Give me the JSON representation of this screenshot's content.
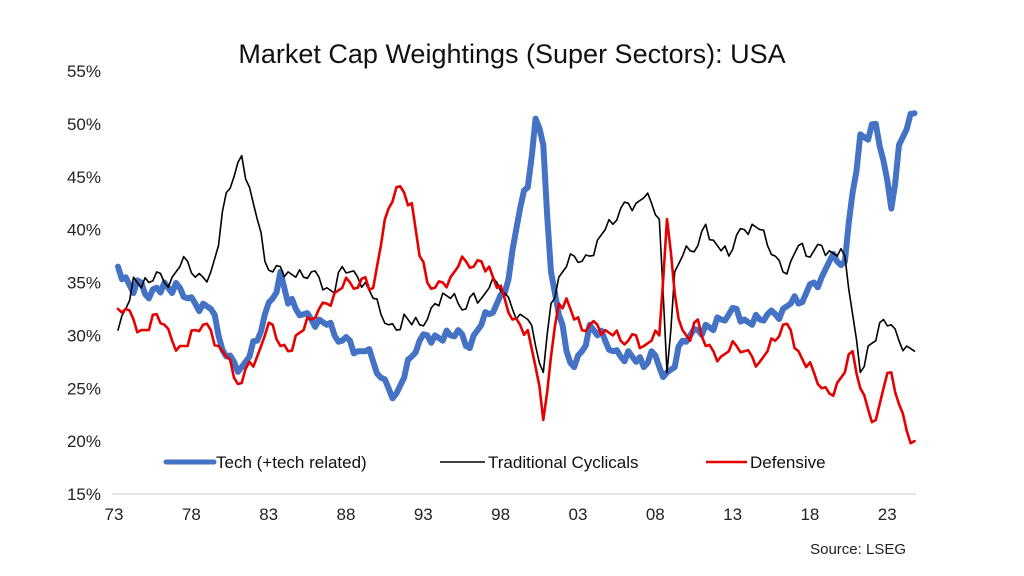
{
  "chart_data": {
    "type": "line",
    "title": "Market Cap Weightings (Super Sectors): USA",
    "xlabel": "",
    "ylabel": "",
    "source": "Source: LSEG",
    "xlim": [
      1973,
      2024.6
    ],
    "ylim": [
      15,
      55
    ],
    "y_ticks": [
      15,
      20,
      25,
      30,
      35,
      40,
      45,
      50,
      55
    ],
    "y_tick_labels": [
      "15%",
      "20%",
      "25%",
      "30%",
      "35%",
      "40%",
      "45%",
      "50%",
      "55%"
    ],
    "x_ticks": [
      1973,
      1978,
      1983,
      1988,
      1993,
      1998,
      2003,
      2008,
      2013,
      2018,
      2023
    ],
    "x_tick_labels": [
      "73",
      "78",
      "83",
      "88",
      "93",
      "98",
      "03",
      "08",
      "13",
      "18",
      "23"
    ],
    "grid": false,
    "legend_position": "bottom-inside",
    "x": [
      1973.0,
      1973.5,
      1974.0,
      1974.5,
      1975.0,
      1975.5,
      1976.0,
      1976.5,
      1977.0,
      1977.5,
      1978.0,
      1978.5,
      1979.0,
      1979.5,
      1980.0,
      1980.5,
      1981.0,
      1981.5,
      1982.0,
      1982.5,
      1983.0,
      1983.5,
      1984.0,
      1984.5,
      1985.0,
      1985.5,
      1986.0,
      1986.5,
      1987.0,
      1987.5,
      1988.0,
      1988.5,
      1989.0,
      1989.5,
      1990.0,
      1990.5,
      1991.0,
      1991.5,
      1992.0,
      1992.5,
      1993.0,
      1993.5,
      1994.0,
      1994.5,
      1995.0,
      1995.5,
      1996.0,
      1996.5,
      1997.0,
      1997.5,
      1998.0,
      1998.5,
      1999.0,
      1999.5,
      2000.0,
      2000.5,
      2001.0,
      2001.5,
      2002.0,
      2002.5,
      2003.0,
      2003.5,
      2004.0,
      2004.5,
      2005.0,
      2005.5,
      2006.0,
      2006.5,
      2007.0,
      2007.5,
      2008.0,
      2008.5,
      2009.0,
      2009.5,
      2010.0,
      2010.5,
      2011.0,
      2011.5,
      2012.0,
      2012.5,
      2013.0,
      2013.5,
      2014.0,
      2014.5,
      2015.0,
      2015.5,
      2016.0,
      2016.5,
      2017.0,
      2017.5,
      2018.0,
      2018.5,
      2019.0,
      2019.5,
      2020.0,
      2020.5,
      2021.0,
      2021.5,
      2022.0,
      2022.5,
      2023.0,
      2023.5,
      2024.0,
      2024.5
    ],
    "series": [
      {
        "name": "Tech (+tech related)",
        "color": "#4472C4",
        "values": [
          36.5,
          35.5,
          34.0,
          35.0,
          33.5,
          34.5,
          35.0,
          34.0,
          34.5,
          33.5,
          33.0,
          33.0,
          32.5,
          30.0,
          28.0,
          27.5,
          27.0,
          28.0,
          29.5,
          32.0,
          33.5,
          36.0,
          33.0,
          32.5,
          32.0,
          31.5,
          31.5,
          31.0,
          30.0,
          29.5,
          29.5,
          28.5,
          28.5,
          27.5,
          26.0,
          25.0,
          24.5,
          26.0,
          28.0,
          29.5,
          30.0,
          30.0,
          29.5,
          30.0,
          30.5,
          29.0,
          30.0,
          31.0,
          32.0,
          33.0,
          34.0,
          38.0,
          42.0,
          44.0,
          50.5,
          48.0,
          36.0,
          32.0,
          28.5,
          27.0,
          28.5,
          31.0,
          30.0,
          29.5,
          28.5,
          28.0,
          28.5,
          27.5,
          27.0,
          28.5,
          27.0,
          26.5,
          27.0,
          29.5,
          30.0,
          30.5,
          31.0,
          30.5,
          31.5,
          32.0,
          32.5,
          31.5,
          31.0,
          31.5,
          32.0,
          32.0,
          32.5,
          33.0,
          33.0,
          34.0,
          35.0,
          35.5,
          37.0,
          37.0,
          37.0,
          43.5,
          49.0,
          48.5,
          50.0,
          46.5,
          42.0,
          48.0,
          49.5,
          51.0
        ]
      },
      {
        "name": "Traditional Cyclicals",
        "color": "#000000",
        "values": [
          30.5,
          32.5,
          35.5,
          34.5,
          35.0,
          36.0,
          35.0,
          35.5,
          36.5,
          37.0,
          35.5,
          35.5,
          36.0,
          38.5,
          43.5,
          45.0,
          47.0,
          44.0,
          41.0,
          37.0,
          36.0,
          36.5,
          36.0,
          35.5,
          35.5,
          36.0,
          35.5,
          34.5,
          34.0,
          36.5,
          36.0,
          35.5,
          35.0,
          33.5,
          32.0,
          31.0,
          30.5,
          32.0,
          31.0,
          31.0,
          31.5,
          33.0,
          34.0,
          33.5,
          33.0,
          32.5,
          34.0,
          33.5,
          34.5,
          35.0,
          34.0,
          32.5,
          32.0,
          31.5,
          29.0,
          26.5,
          33.0,
          35.5,
          36.5,
          37.5,
          37.0,
          37.5,
          39.0,
          40.0,
          40.5,
          42.0,
          42.5,
          42.5,
          43.0,
          42.5,
          41.0,
          26.5,
          36.0,
          37.5,
          38.0,
          38.5,
          40.5,
          39.0,
          38.0,
          37.5,
          39.5,
          40.0,
          40.5,
          40.0,
          38.5,
          37.5,
          36.0,
          37.0,
          38.5,
          37.5,
          38.0,
          38.5,
          38.0,
          37.5,
          37.5,
          32.0,
          26.5,
          29.0,
          29.5,
          31.5,
          31.0,
          29.5,
          29.0,
          28.5
        ]
      },
      {
        "name": "Defensive",
        "color": "#E60000",
        "values": [
          32.5,
          32.5,
          31.5,
          30.5,
          30.5,
          32.0,
          31.0,
          29.5,
          29.0,
          29.0,
          30.5,
          31.0,
          30.5,
          29.0,
          28.0,
          26.0,
          25.5,
          27.5,
          28.0,
          30.0,
          31.0,
          29.0,
          28.5,
          30.0,
          30.5,
          31.5,
          32.5,
          33.0,
          34.0,
          34.5,
          35.0,
          34.5,
          35.5,
          34.5,
          38.5,
          42.0,
          44.0,
          43.5,
          42.5,
          37.5,
          35.0,
          34.5,
          35.0,
          35.5,
          36.5,
          37.0,
          36.5,
          37.0,
          36.5,
          34.5,
          33.5,
          31.5,
          31.0,
          30.5,
          27.0,
          22.0,
          28.0,
          33.0,
          33.5,
          31.5,
          30.5,
          31.0,
          31.0,
          30.5,
          30.0,
          29.5,
          29.5,
          30.0,
          29.0,
          29.5,
          30.0,
          41.0,
          34.0,
          30.5,
          29.5,
          31.5,
          29.0,
          28.5,
          28.0,
          28.5,
          29.0,
          28.5,
          28.0,
          27.5,
          28.5,
          29.5,
          31.0,
          30.5,
          28.5,
          27.0,
          26.5,
          25.0,
          24.5,
          25.5,
          26.5,
          28.5,
          25.0,
          23.0,
          22.0,
          25.0,
          26.5,
          23.5,
          21.0,
          20.0
        ]
      }
    ]
  }
}
